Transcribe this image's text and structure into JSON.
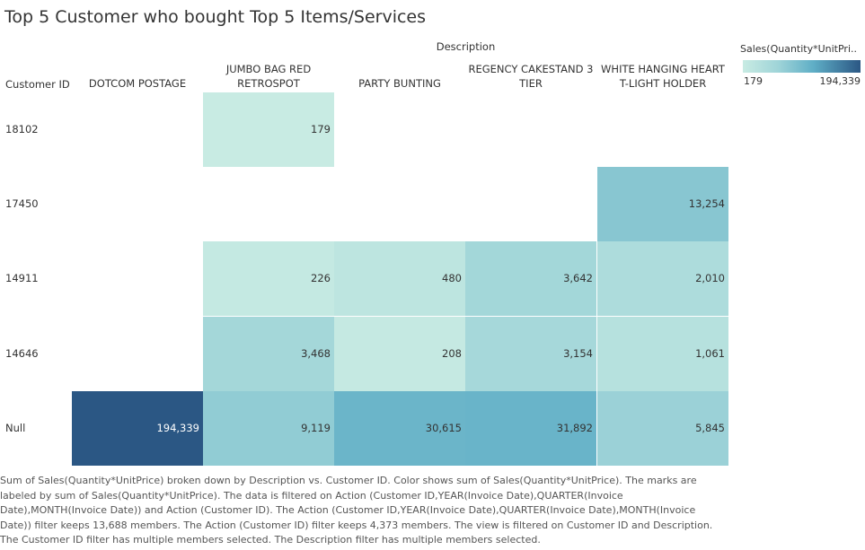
{
  "chart_data": {
    "type": "heatmap",
    "title": "Top 5 Customer who bought Top 5 Items/Services",
    "column_group_label": "Description",
    "row_header_label": "Customer ID",
    "columns": [
      "DOTCOM POSTAGE",
      "JUMBO BAG RED RETROSPOT",
      "PARTY BUNTING",
      "REGENCY CAKESTAND 3 TIER",
      "WHITE HANGING HEART T-LIGHT HOLDER"
    ],
    "rows": [
      "18102",
      "17450",
      "14911",
      "14646",
      "Null"
    ],
    "values": [
      [
        null,
        179,
        null,
        null,
        null
      ],
      [
        null,
        null,
        null,
        null,
        13254
      ],
      [
        null,
        226,
        480,
        3642,
        2010
      ],
      [
        null,
        3468,
        208,
        3154,
        1061
      ],
      [
        194339,
        9119,
        30615,
        31892,
        5845
      ]
    ],
    "labels": [
      [
        null,
        "179",
        null,
        null,
        null
      ],
      [
        null,
        null,
        null,
        null,
        "13,254"
      ],
      [
        null,
        "226",
        "480",
        "3,642",
        "2,010"
      ],
      [
        null,
        "3,468",
        "208",
        "3,154",
        "1,061"
      ],
      [
        "194,339",
        "9,119",
        "30,615",
        "31,892",
        "5,845"
      ]
    ],
    "legend": {
      "title": "Sales(Quantity*UnitPri..",
      "min_label": "179",
      "max_label": "194,339",
      "min": 179,
      "max": 194339,
      "color_low": "#c8ebe3",
      "color_high": "#2b5784"
    }
  },
  "caption": "Sum of Sales(Quantity*UnitPrice) broken down by Description vs. Customer ID.  Color shows sum of Sales(Quantity*UnitPrice).  The marks are labeled by sum of Sales(Quantity*UnitPrice). The data is filtered on Action (Customer ID,YEAR(Invoice Date),QUARTER(Invoice Date),MONTH(Invoice Date)) and Action (Customer ID). The Action (Customer ID,YEAR(Invoice Date),QUARTER(Invoice Date),MONTH(Invoice Date)) filter keeps 13,688 members. The Action (Customer ID) filter keeps 4,373 members. The view is filtered on Customer ID and Description. The Customer ID filter has multiple members selected. The Description filter has multiple members selected."
}
